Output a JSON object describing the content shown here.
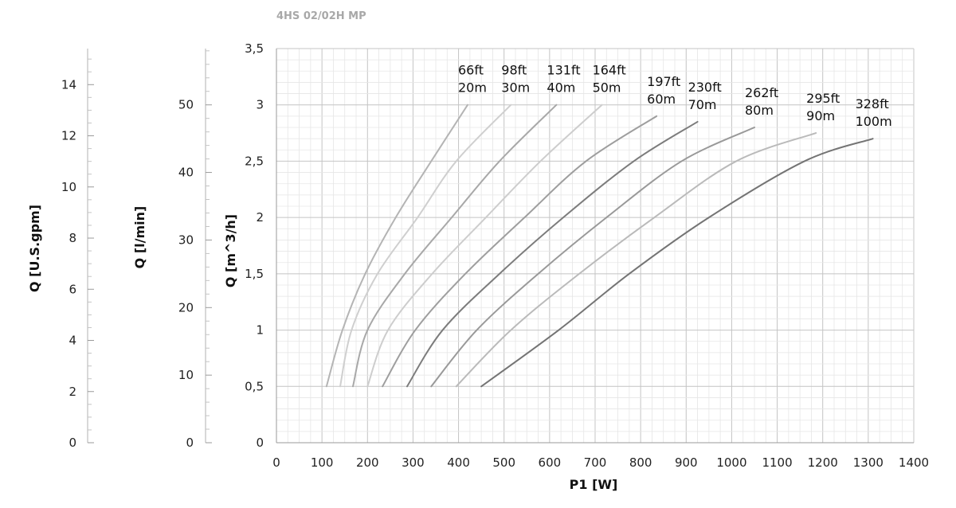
{
  "chart_data": {
    "type": "line",
    "title": "4HS 02/02H MP",
    "xlabel": "P1 [W]",
    "ylabel": "Q [m^3/h]",
    "ylabel_lmin": "Q [l/min]",
    "ylabel_gpm": "Q [U.S.gpm]",
    "xlim": [
      0,
      1400
    ],
    "ylim": [
      0,
      3.5
    ],
    "x_ticks": [
      "0",
      "100",
      "200",
      "300",
      "400",
      "500",
      "600",
      "700",
      "800",
      "900",
      "1000",
      "1100",
      "1200",
      "1300",
      "1400"
    ],
    "y_ticks": [
      "0",
      "0,5",
      "1",
      "1,5",
      "2",
      "2,5",
      "3",
      "3,5"
    ],
    "y_ticks_lmin": [
      "0",
      "10",
      "20",
      "30",
      "40",
      "50"
    ],
    "y_ticks_gpm": [
      "0",
      "2",
      "4",
      "6",
      "8",
      "10",
      "12",
      "14"
    ],
    "grid": true,
    "series": [
      {
        "name": "66ft 20m",
        "label_ft": "66ft",
        "label_m": "20m",
        "color": "#b4b4b4",
        "points": [
          [
            110,
            0.5
          ],
          [
            145,
            1.0
          ],
          [
            195,
            1.5
          ],
          [
            262,
            2.0
          ],
          [
            340,
            2.5
          ],
          [
            420,
            3.0
          ]
        ]
      },
      {
        "name": "98ft 30m",
        "label_ft": "98ft",
        "label_m": "30m",
        "color": "#cfcfcf",
        "points": [
          [
            140,
            0.5
          ],
          [
            165,
            1.0
          ],
          [
            222,
            1.5
          ],
          [
            310,
            2.0
          ],
          [
            395,
            2.5
          ],
          [
            515,
            3.0
          ]
        ]
      },
      {
        "name": "131ft 40m",
        "label_ft": "131ft",
        "label_m": "40m",
        "color": "#a8a8a8",
        "points": [
          [
            168,
            0.5
          ],
          [
            200,
            1.0
          ],
          [
            282,
            1.5
          ],
          [
            385,
            2.0
          ],
          [
            490,
            2.5
          ],
          [
            615,
            3.0
          ]
        ]
      },
      {
        "name": "164ft 50m",
        "label_ft": "164ft",
        "label_m": "50m",
        "color": "#cdcdcd",
        "points": [
          [
            200,
            0.5
          ],
          [
            245,
            1.0
          ],
          [
            342,
            1.5
          ],
          [
            460,
            2.0
          ],
          [
            580,
            2.5
          ],
          [
            715,
            3.0
          ]
        ]
      },
      {
        "name": "197ft 60m",
        "label_ft": "197ft",
        "label_m": "60m",
        "color": "#9e9e9e",
        "points": [
          [
            233,
            0.5
          ],
          [
            305,
            1.0
          ],
          [
            415,
            1.5
          ],
          [
            545,
            2.0
          ],
          [
            680,
            2.5
          ],
          [
            835,
            2.9
          ]
        ]
      },
      {
        "name": "230ft 70m",
        "label_ft": "230ft",
        "label_m": "70m",
        "color": "#7c7c7c",
        "points": [
          [
            287,
            0.5
          ],
          [
            365,
            1.0
          ],
          [
            490,
            1.5
          ],
          [
            630,
            2.0
          ],
          [
            785,
            2.5
          ],
          [
            925,
            2.85
          ]
        ]
      },
      {
        "name": "262ft 80m",
        "label_ft": "262ft",
        "label_m": "80m",
        "color": "#999999",
        "points": [
          [
            340,
            0.5
          ],
          [
            440,
            1.0
          ],
          [
            575,
            1.5
          ],
          [
            725,
            2.0
          ],
          [
            890,
            2.5
          ],
          [
            1050,
            2.8
          ]
        ]
      },
      {
        "name": "295ft 90m",
        "label_ft": "295ft",
        "label_m": "90m",
        "color": "#bababa",
        "points": [
          [
            395,
            0.5
          ],
          [
            515,
            1.0
          ],
          [
            665,
            1.5
          ],
          [
            830,
            2.0
          ],
          [
            1010,
            2.5
          ],
          [
            1185,
            2.75
          ]
        ]
      },
      {
        "name": "328ft 100m",
        "label_ft": "328ft",
        "label_m": "100m",
        "color": "#747474",
        "points": [
          [
            450,
            0.5
          ],
          [
            620,
            1.0
          ],
          [
            775,
            1.5
          ],
          [
            950,
            2.0
          ],
          [
            1160,
            2.5
          ],
          [
            1310,
            2.7
          ]
        ]
      }
    ]
  }
}
